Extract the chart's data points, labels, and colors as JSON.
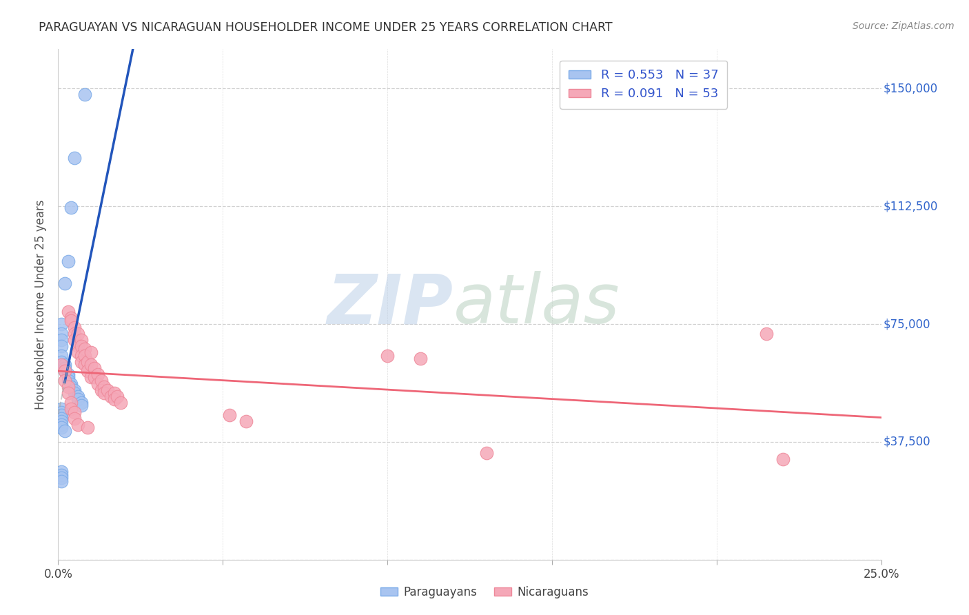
{
  "title": "PARAGUAYAN VS NICARAGUAN HOUSEHOLDER INCOME UNDER 25 YEARS CORRELATION CHART",
  "source": "Source: ZipAtlas.com",
  "ylabel": "Householder Income Under 25 years",
  "xlim": [
    0.0,
    0.25
  ],
  "ylim": [
    0,
    162500
  ],
  "yticks": [
    0,
    37500,
    75000,
    112500,
    150000
  ],
  "ytick_labels": [
    "",
    "$37,500",
    "$75,000",
    "$112,500",
    "$150,000"
  ],
  "xticks": [
    0.0,
    0.05,
    0.1,
    0.15,
    0.2,
    0.25
  ],
  "xtick_labels": [
    "0.0%",
    "",
    "",
    "",
    "",
    "25.0%"
  ],
  "blue_color": "#A8C4F0",
  "blue_edge_color": "#7AAAE8",
  "pink_color": "#F5A8B8",
  "pink_edge_color": "#EE8899",
  "blue_line_color": "#2255BB",
  "pink_line_color": "#EE6677",
  "blue_scatter_x": [
    0.008,
    0.005,
    0.004,
    0.003,
    0.002,
    0.001,
    0.001,
    0.001,
    0.001,
    0.001,
    0.001,
    0.002,
    0.002,
    0.002,
    0.003,
    0.003,
    0.003,
    0.004,
    0.004,
    0.005,
    0.005,
    0.006,
    0.006,
    0.007,
    0.007,
    0.001,
    0.001,
    0.001,
    0.001,
    0.001,
    0.001,
    0.001,
    0.002,
    0.001,
    0.001,
    0.001,
    0.001
  ],
  "blue_scatter_y": [
    148000,
    128000,
    112000,
    95000,
    88000,
    75000,
    72000,
    70000,
    68000,
    65000,
    63000,
    62000,
    61000,
    60000,
    59000,
    58000,
    57000,
    56000,
    55000,
    54000,
    53000,
    52000,
    51000,
    50000,
    49000,
    48000,
    47000,
    46000,
    45000,
    44000,
    43000,
    42000,
    41000,
    28000,
    27000,
    26000,
    25000
  ],
  "pink_scatter_x": [
    0.003,
    0.004,
    0.004,
    0.005,
    0.005,
    0.005,
    0.006,
    0.006,
    0.006,
    0.007,
    0.007,
    0.007,
    0.007,
    0.008,
    0.008,
    0.008,
    0.009,
    0.009,
    0.01,
    0.01,
    0.01,
    0.011,
    0.011,
    0.012,
    0.012,
    0.013,
    0.013,
    0.014,
    0.014,
    0.015,
    0.016,
    0.017,
    0.017,
    0.018,
    0.019,
    0.001,
    0.002,
    0.002,
    0.003,
    0.003,
    0.004,
    0.004,
    0.005,
    0.005,
    0.006,
    0.009,
    0.052,
    0.057,
    0.1,
    0.11,
    0.13,
    0.215,
    0.22
  ],
  "pink_scatter_y": [
    79000,
    77000,
    76000,
    74000,
    72000,
    70000,
    72000,
    68000,
    66000,
    70000,
    68000,
    65000,
    63000,
    67000,
    65000,
    62000,
    63000,
    60000,
    66000,
    62000,
    58000,
    61000,
    58000,
    59000,
    56000,
    57000,
    54000,
    55000,
    53000,
    54000,
    52000,
    53000,
    51000,
    52000,
    50000,
    62000,
    60000,
    57000,
    55000,
    53000,
    50000,
    48000,
    47000,
    45000,
    43000,
    42000,
    46000,
    44000,
    65000,
    64000,
    34000,
    72000,
    32000
  ],
  "watermark_zip": "ZIP",
  "watermark_atlas": "atlas",
  "watermark_color_zip": "#C8D8EE",
  "watermark_color_atlas": "#C8D8CC"
}
